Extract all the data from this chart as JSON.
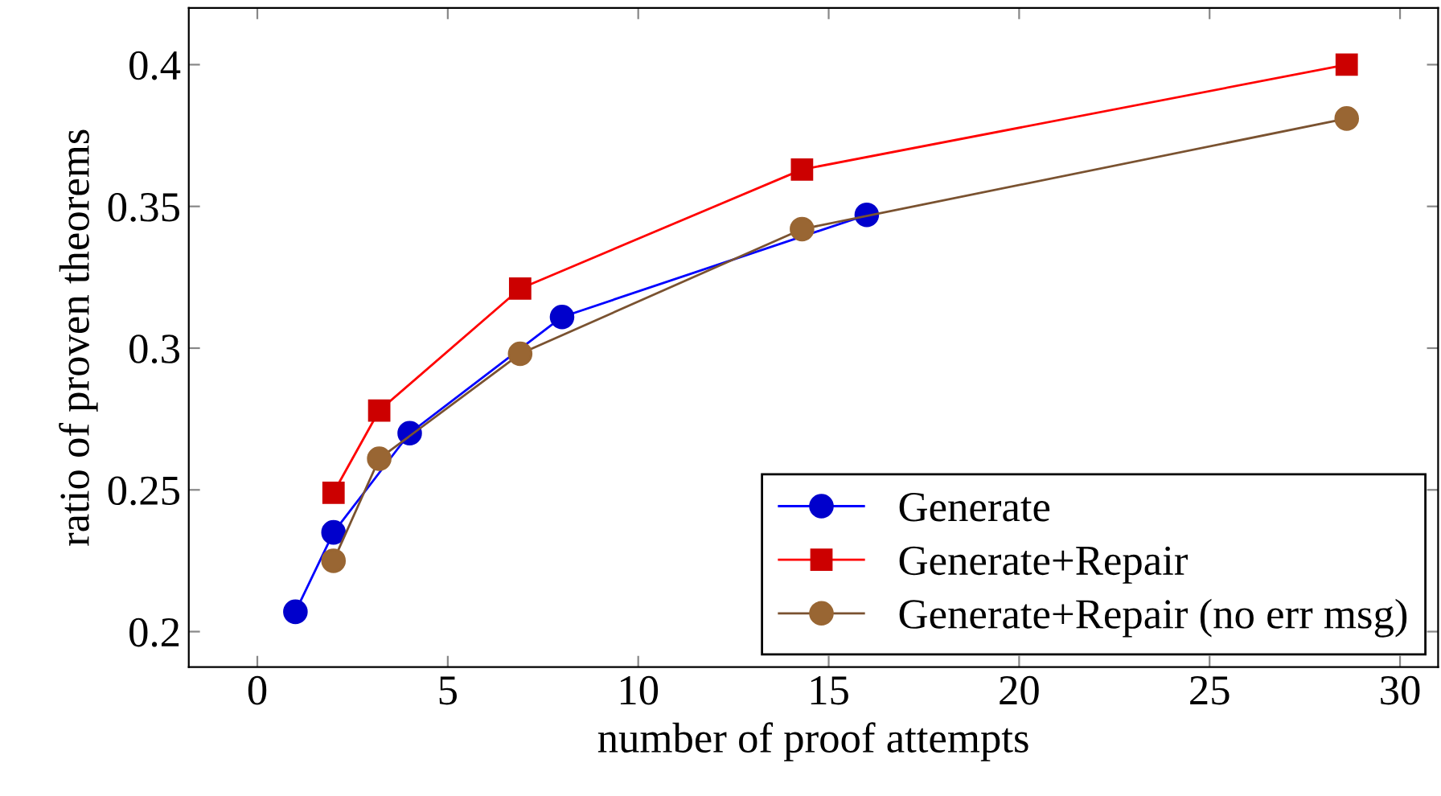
{
  "chart_data": {
    "type": "line",
    "xlabel": "number of proof attempts",
    "ylabel": "ratio of proven theorems",
    "xlim": [
      -1.8,
      31
    ],
    "ylim": [
      0.1875,
      0.42
    ],
    "xticks": [
      0,
      5,
      10,
      15,
      20,
      25,
      30
    ],
    "yticks": [
      0.2,
      0.25,
      0.3,
      0.35,
      0.4
    ],
    "grid": false,
    "legend": "bottom right",
    "series": [
      {
        "name": "Generate",
        "color": "#0000ff",
        "marker": "circle",
        "x": [
          1,
          2,
          4,
          8,
          16
        ],
        "values": [
          0.207,
          0.235,
          0.27,
          0.311,
          0.347
        ]
      },
      {
        "name": "Generate+Repair",
        "color": "#ff0000",
        "marker": "square",
        "x": [
          2,
          3.2,
          6.9,
          14.3,
          28.6
        ],
        "values": [
          0.249,
          0.278,
          0.321,
          0.363,
          0.4
        ]
      },
      {
        "name": "Generate+Repair (no err msg)",
        "color": "#7a5230",
        "marker": "circle",
        "x": [
          2,
          3.2,
          6.9,
          14.3,
          28.6
        ],
        "values": [
          0.225,
          0.261,
          0.298,
          0.342,
          0.381
        ]
      }
    ]
  }
}
